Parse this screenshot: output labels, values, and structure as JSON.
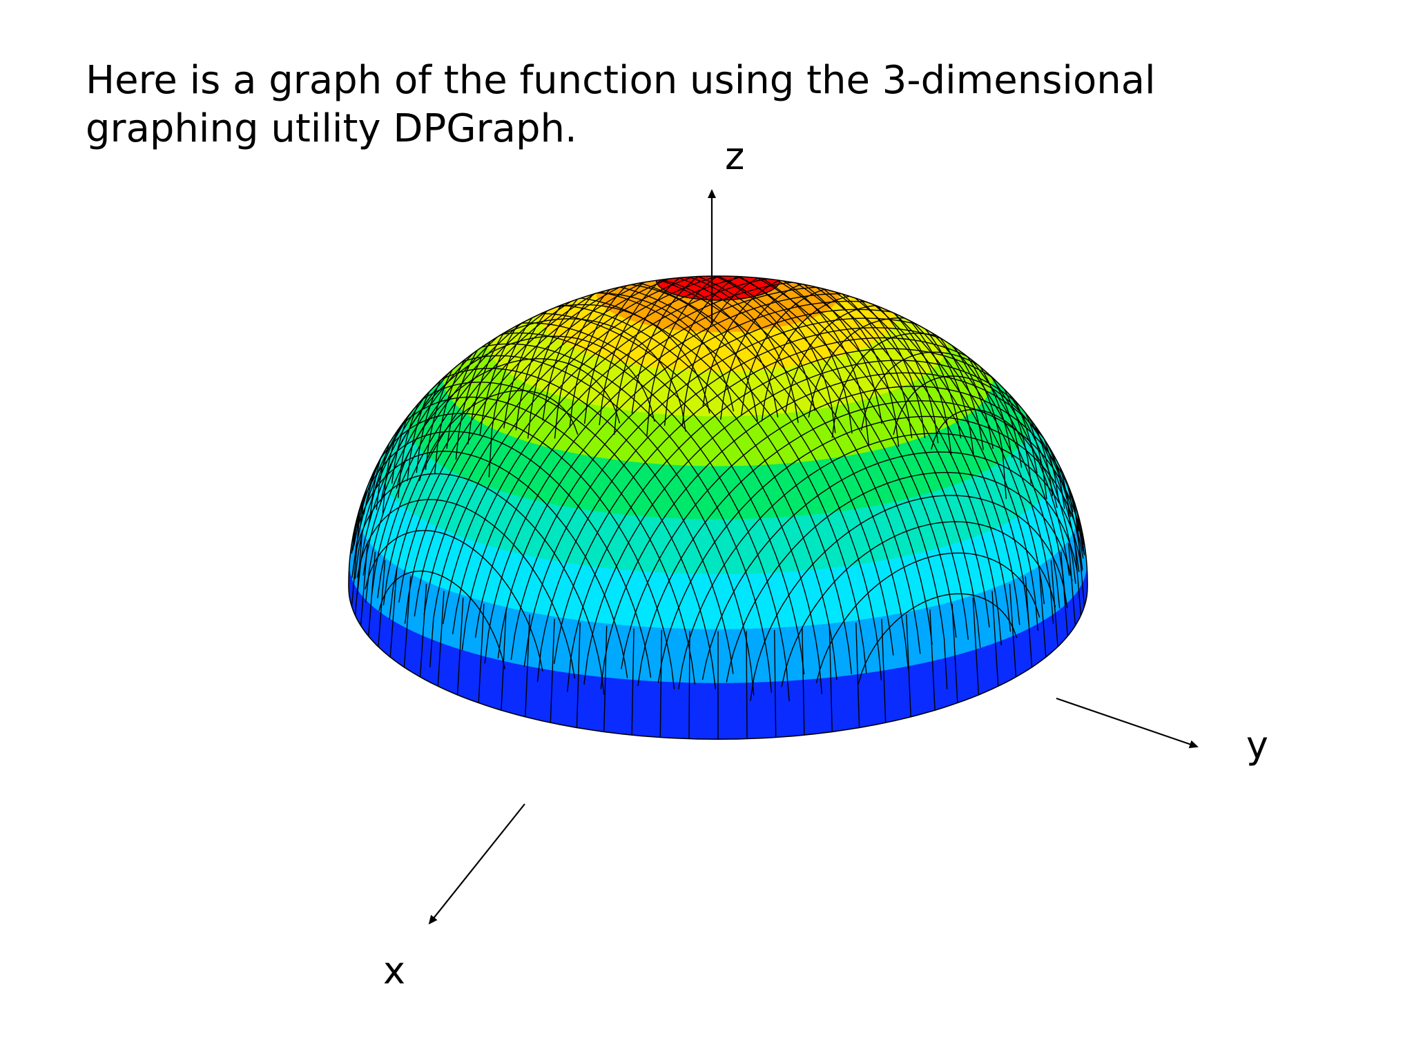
{
  "caption": {
    "line1": "Here is a graph of the function using the 3-dimensional",
    "line2": "graphing utility DPGraph."
  },
  "axes": {
    "x_label": "x",
    "y_label": "y",
    "z_label": "z"
  },
  "surface": {
    "shape": "hemisphere",
    "band_colors": [
      "#ff0000",
      "#ffa500",
      "#ffe100",
      "#d0f500",
      "#8cf500",
      "#00e86a",
      "#00e6c0",
      "#00e6ff",
      "#00a8ff",
      "#0a2cff"
    ],
    "mesh_color": "#000000"
  }
}
